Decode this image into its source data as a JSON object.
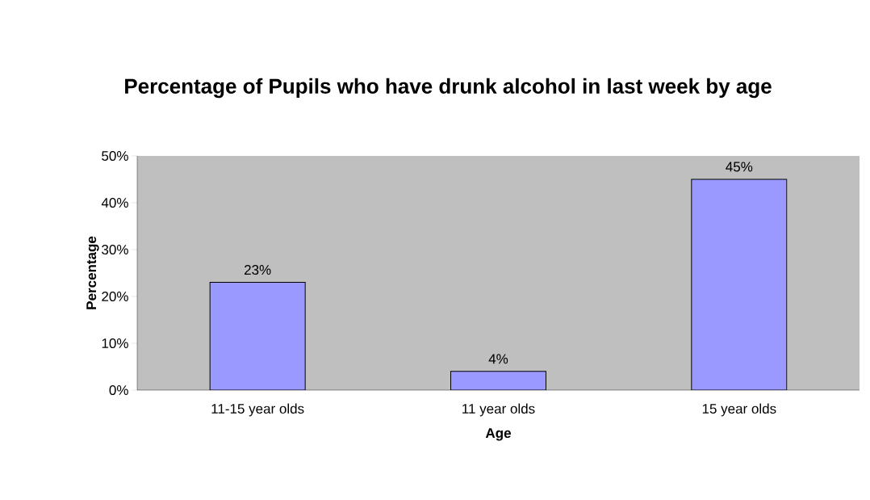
{
  "chart_data": {
    "type": "bar",
    "title": "Percentage of Pupils who have drunk alcohol in last week by age",
    "xlabel": "Age",
    "ylabel": "Percentage",
    "categories": [
      "11-15 year olds",
      "11 year olds",
      "15 year olds"
    ],
    "values": [
      23,
      4,
      45
    ],
    "value_labels": [
      "23%",
      "4%",
      "45%"
    ],
    "color": "#9999ff",
    "ylim": [
      0,
      50
    ],
    "yticks": [
      {
        "value": 0,
        "label": "0%"
      },
      {
        "value": 10,
        "label": "10%"
      },
      {
        "value": 20,
        "label": "20%"
      },
      {
        "value": 30,
        "label": "30%"
      },
      {
        "value": 40,
        "label": "40%"
      },
      {
        "value": 50,
        "label": "50%"
      }
    ],
    "grid": false
  }
}
